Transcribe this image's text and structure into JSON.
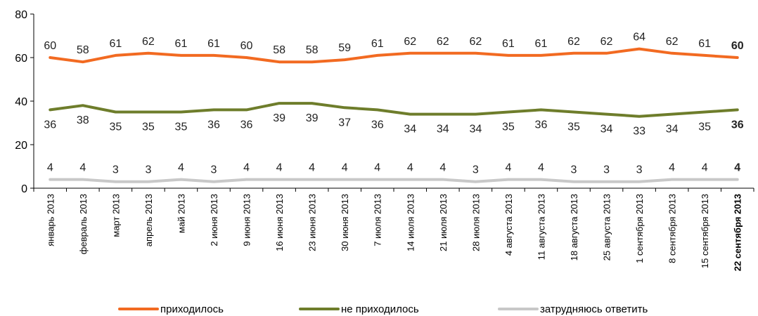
{
  "chart_data": {
    "type": "line",
    "ylim": [
      0,
      80
    ],
    "yticks": [
      0,
      20,
      40,
      60,
      80
    ],
    "grid": false,
    "legend_position": "bottom",
    "categories": [
      "январь 2013",
      "февраль 2013",
      "март 2013",
      "апрель 2013",
      "май 2013",
      "2 июня 2013",
      "9 июня 2013",
      "16 июня 2013",
      "23 июня 2013",
      "30 июня 2013",
      "7 июля 2013",
      "14 июля 2013",
      "21 июля 2013",
      "28 июля 2013",
      "4 августа 2013",
      "11 августа 2013",
      "18 августа 2013",
      "25 августа 2013",
      "1 сентября 2013",
      "8 сентября 2013",
      "15 сентября 2013",
      "22 сентября 2013"
    ],
    "series": [
      {
        "name": "приходилось",
        "color": "#f26a21",
        "values": [
          60,
          58,
          61,
          62,
          61,
          61,
          60,
          58,
          58,
          59,
          61,
          62,
          62,
          62,
          61,
          61,
          62,
          62,
          64,
          62,
          61,
          60
        ],
        "labels": [
          "60",
          "58",
          "61",
          "62",
          "61",
          "61",
          "60",
          "58",
          "58",
          "59",
          "61",
          "62",
          "62",
          "62",
          "61",
          "61",
          "62",
          "62",
          "64",
          "62",
          "61",
          "60"
        ]
      },
      {
        "name": "не приходилось",
        "color": "#6e7d2b",
        "values": [
          36,
          38,
          35,
          35,
          35,
          36,
          36,
          39,
          39,
          37,
          36,
          34,
          34,
          34,
          35,
          36,
          35,
          34,
          33,
          34,
          35,
          36
        ],
        "labels": [
          "36",
          "38",
          "35",
          "35",
          "35",
          "36",
          "36",
          "39",
          "39",
          "37",
          "36",
          "34",
          "34",
          "34",
          "35",
          "36",
          "35",
          "34",
          "33",
          "34",
          "35",
          "36"
        ]
      },
      {
        "name": "затрудняюсь ответить",
        "color": "#c8c8c8",
        "values": [
          4,
          4,
          3,
          3,
          4,
          3,
          4,
          4,
          4,
          4,
          4,
          4,
          4,
          3,
          4,
          4,
          3,
          3,
          3,
          4,
          4,
          4
        ],
        "labels": [
          "4",
          "4",
          "3",
          "3",
          "4",
          "3",
          "4",
          "4",
          "4",
          "4",
          "4",
          "4",
          "4",
          "3",
          "4",
          "4",
          "3",
          "3",
          "3",
          "4",
          "4",
          "4"
        ]
      }
    ]
  }
}
